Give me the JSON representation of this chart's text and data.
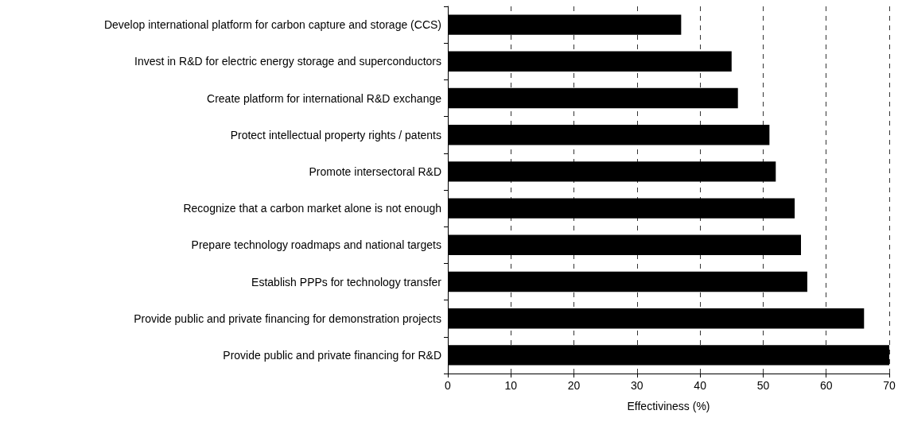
{
  "chart_data": {
    "type": "bar",
    "orientation": "horizontal",
    "xlabel": "Effectiviness (%)",
    "categories": [
      "Develop international platform for carbon capture and storage (CCS)",
      "Invest in R&D for electric energy storage and superconductors",
      "Create platform for international R&D exchange",
      "Protect intellectual property rights / patents",
      "Promote intersectoral R&D",
      "Recognize that a carbon market alone is not enough",
      "Prepare technology roadmaps and national targets",
      "Establish PPPs for technology transfer",
      "Provide public and private financing for demonstration projects",
      "Provide public and private financing for R&D"
    ],
    "values": [
      37,
      45,
      46,
      51,
      52,
      55,
      56,
      57,
      66,
      70
    ],
    "color": "#000000",
    "xlim": [
      0,
      70
    ],
    "xticks": [
      0,
      10,
      20,
      30,
      40,
      50,
      60,
      70
    ],
    "grid": "x"
  }
}
